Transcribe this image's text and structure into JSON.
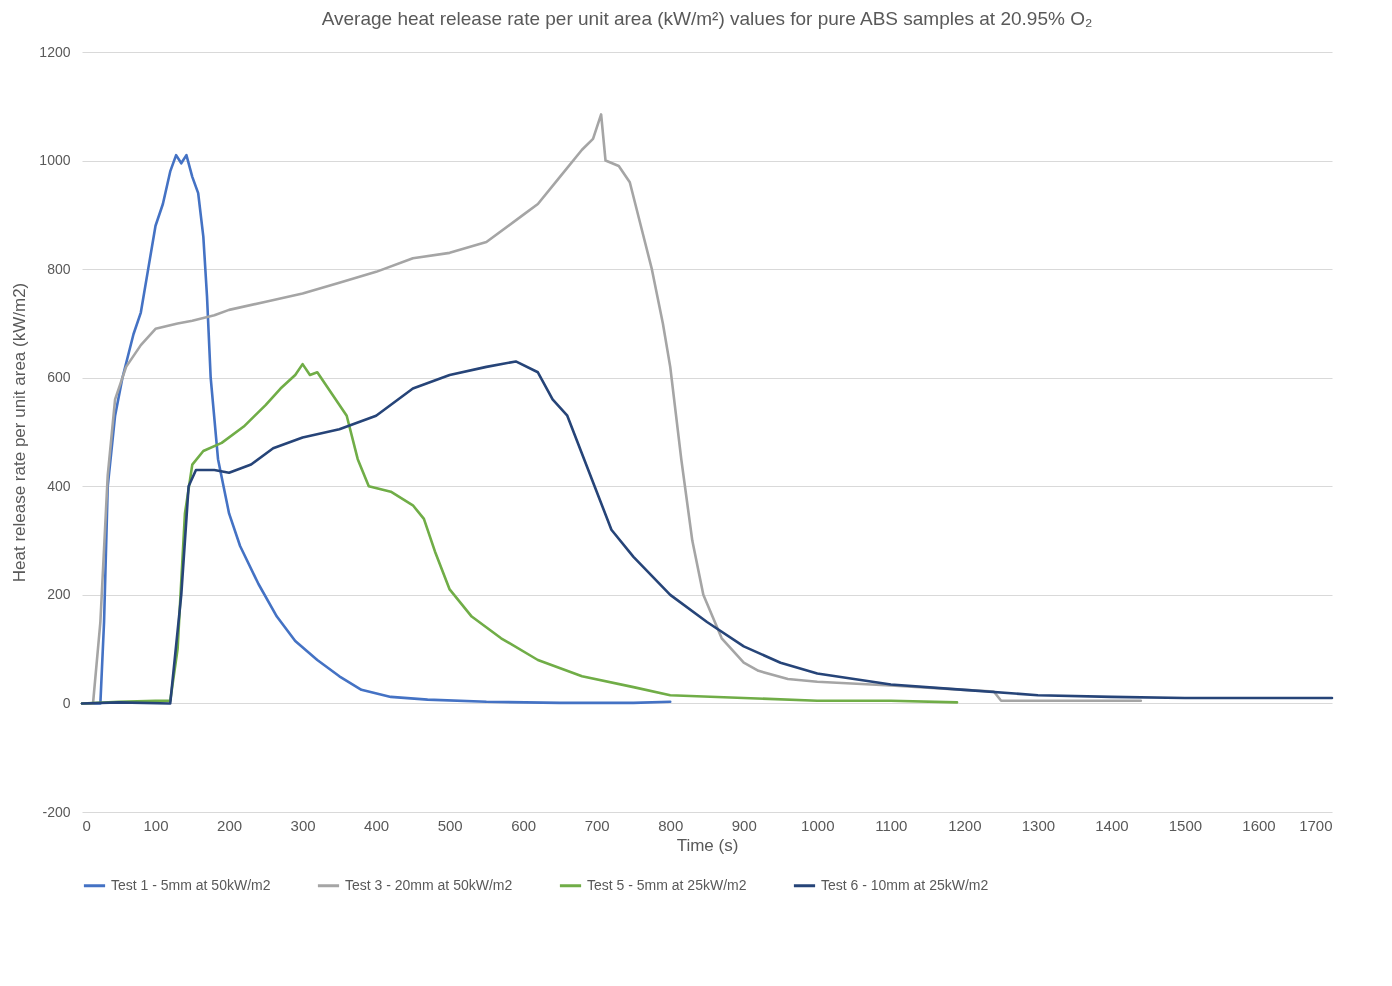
{
  "chart_data": {
    "type": "line",
    "title": "Average heat release rate per unit area (kW/m²) values for pure ABS samples at 20.95% O₂",
    "xlabel": "Time (s)",
    "ylabel": "Heat release rate per unit area (kW/m2)",
    "xlim": [
      0,
      1700
    ],
    "ylim": [
      -200,
      1200
    ],
    "xticks": [
      0,
      100,
      200,
      300,
      400,
      500,
      600,
      700,
      800,
      900,
      1000,
      1100,
      1200,
      1300,
      1400,
      1500,
      1600,
      1700
    ],
    "yticks": [
      -200,
      0,
      200,
      400,
      600,
      800,
      1000,
      1200
    ],
    "grid": "y",
    "legend": "bottom",
    "series": [
      {
        "name": "Test 1 - 5mm at 50kW/m2",
        "color": "#4472c4",
        "x": [
          0,
          25,
          30,
          35,
          45,
          55,
          70,
          80,
          90,
          100,
          110,
          120,
          128,
          135,
          142,
          150,
          158,
          165,
          170,
          175,
          185,
          200,
          215,
          240,
          265,
          290,
          320,
          350,
          380,
          420,
          470,
          550,
          650,
          750,
          800
        ],
        "values": [
          0,
          0,
          150,
          400,
          530,
          600,
          680,
          720,
          800,
          880,
          920,
          980,
          1010,
          995,
          1010,
          970,
          940,
          860,
          750,
          600,
          450,
          350,
          290,
          220,
          160,
          115,
          80,
          50,
          25,
          12,
          7,
          3,
          1,
          1,
          3
        ]
      },
      {
        "name": "Test 3 - 20mm at 50kW/m2",
        "color": "#a5a5a5",
        "x": [
          0,
          15,
          25,
          35,
          45,
          60,
          80,
          100,
          130,
          150,
          180,
          200,
          250,
          300,
          350,
          400,
          450,
          500,
          550,
          600,
          620,
          650,
          680,
          695,
          706,
          712,
          730,
          745,
          760,
          775,
          790,
          800,
          815,
          830,
          845,
          870,
          900,
          920,
          960,
          1000,
          1100,
          1200,
          1240,
          1250,
          1300,
          1400,
          1440
        ],
        "values": [
          0,
          0,
          150,
          420,
          560,
          620,
          660,
          690,
          700,
          705,
          715,
          725,
          740,
          755,
          775,
          795,
          820,
          830,
          850,
          900,
          920,
          970,
          1020,
          1040,
          1085,
          1000,
          990,
          960,
          880,
          800,
          700,
          620,
          450,
          300,
          200,
          120,
          75,
          60,
          45,
          40,
          33,
          25,
          22,
          5,
          5,
          5,
          5
        ]
      },
      {
        "name": "Test 5 - 5mm at 25kW/m2",
        "color": "#70ad47",
        "x": [
          0,
          50,
          100,
          120,
          130,
          140,
          150,
          165,
          190,
          220,
          250,
          270,
          290,
          300,
          310,
          320,
          340,
          360,
          375,
          390,
          420,
          450,
          465,
          480,
          500,
          530,
          570,
          620,
          680,
          750,
          800,
          900,
          1000,
          1100,
          1190
        ],
        "values": [
          0,
          3,
          5,
          5,
          100,
          350,
          440,
          465,
          480,
          510,
          550,
          580,
          605,
          625,
          605,
          610,
          570,
          530,
          450,
          400,
          390,
          365,
          340,
          280,
          210,
          160,
          120,
          80,
          50,
          30,
          15,
          10,
          5,
          5,
          2
        ]
      },
      {
        "name": "Test 6 - 10mm at 25kW/m2",
        "color": "#264478",
        "x": [
          0,
          50,
          120,
          135,
          145,
          155,
          180,
          200,
          230,
          260,
          300,
          350,
          400,
          450,
          500,
          550,
          590,
          620,
          640,
          660,
          680,
          700,
          720,
          750,
          800,
          850,
          900,
          950,
          1000,
          1100,
          1200,
          1300,
          1400,
          1500,
          1600,
          1700
        ],
        "values": [
          0,
          2,
          0,
          200,
          400,
          430,
          430,
          425,
          440,
          470,
          490,
          505,
          530,
          580,
          605,
          620,
          630,
          610,
          560,
          530,
          460,
          390,
          320,
          270,
          200,
          150,
          105,
          75,
          55,
          35,
          25,
          15,
          12,
          10,
          10,
          10
        ]
      }
    ]
  }
}
